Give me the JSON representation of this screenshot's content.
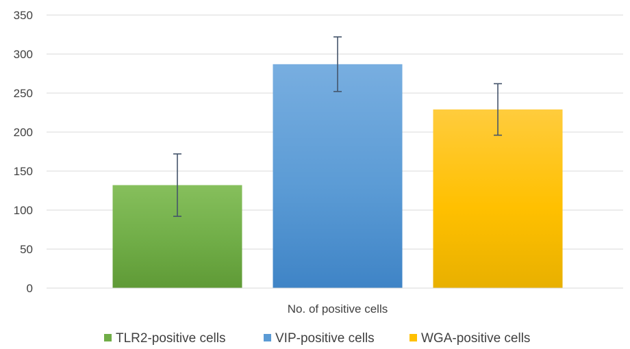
{
  "chart_data": {
    "type": "bar",
    "title": "",
    "xlabel": "No. of positive cells",
    "ylabel": "",
    "ylim": [
      0,
      350
    ],
    "yticks": [
      0,
      50,
      100,
      150,
      200,
      250,
      300,
      350
    ],
    "grid": true,
    "legend_position": "bottom",
    "categories": [
      "No. of positive cells"
    ],
    "series": [
      {
        "name": "TLR2-positive cells",
        "values": [
          132
        ],
        "error": [
          40
        ],
        "color": "#70ad47",
        "color_light": "#86bf5c",
        "color_dark": "#5f9a36"
      },
      {
        "name": "VIP-positive cells",
        "values": [
          287
        ],
        "error": [
          35
        ],
        "color": "#5b9bd5",
        "color_light": "#78aee0",
        "color_dark": "#3f84c6"
      },
      {
        "name": "WGA-positive cells",
        "values": [
          229
        ],
        "error": [
          33
        ],
        "color": "#ffc000",
        "color_light": "#ffcc3d",
        "color_dark": "#e8b000"
      }
    ]
  }
}
